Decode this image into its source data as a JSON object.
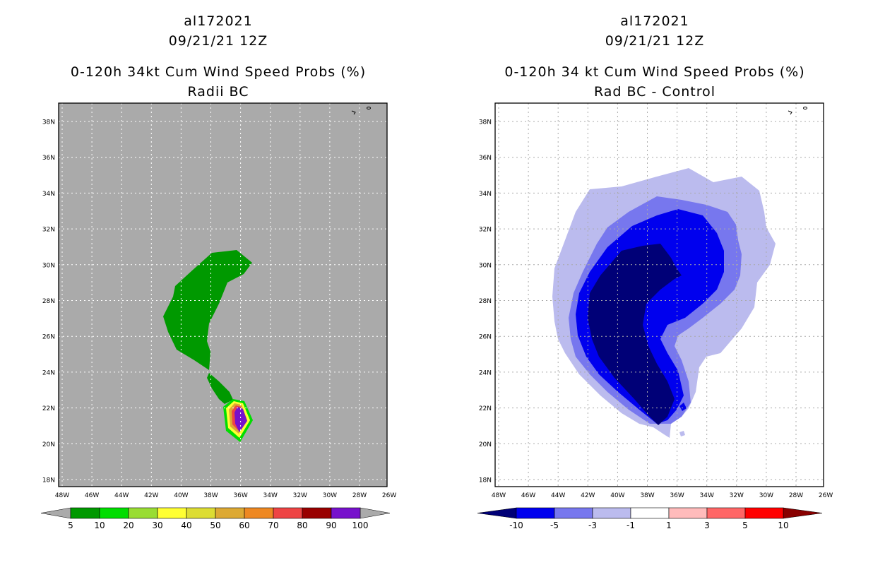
{
  "left": {
    "storm_id": "al172021",
    "datetime": "09/21/21 12Z",
    "title": "0-120h 34kt Cum Wind Speed Probs (%)",
    "subtitle": "Radii BC",
    "background_color": "#aaaaaa",
    "colorbar": {
      "colors": [
        "#009900",
        "#00dd00",
        "#99dd33",
        "#ffff33",
        "#dddd33",
        "#dda933",
        "#ee8822",
        "#ee4444",
        "#990000",
        "#7711cc"
      ],
      "labels": [
        "5",
        "10",
        "20",
        "30",
        "40",
        "50",
        "60",
        "70",
        "80",
        "90",
        "100"
      ]
    }
  },
  "right": {
    "storm_id": "al172021",
    "datetime": "09/21/21 12Z",
    "title": "0-120h 34 kt Cum Wind Speed Probs (%)",
    "subtitle": "Rad BC - Control",
    "background_color": "#ffffff",
    "colorbar": {
      "colors": [
        "#0000ee",
        "#7777ee",
        "#bbbbee",
        "#ffffff",
        "#ffbbbb",
        "#ff6666",
        "#ff0000"
      ],
      "left_arrow_color": "#000077",
      "right_arrow_color": "#880000",
      "labels": [
        "-10",
        "-5",
        "-3",
        "-1",
        "1",
        "3",
        "5",
        "10"
      ]
    }
  },
  "axes": {
    "lat_labels": [
      "38N",
      "36N",
      "34N",
      "32N",
      "30N",
      "28N",
      "26N",
      "24N",
      "22N",
      "20N",
      "18N"
    ],
    "lon_labels": [
      "48W",
      "46W",
      "44W",
      "42W",
      "40W",
      "38W",
      "36W",
      "34W",
      "32W",
      "30W",
      "28W",
      "26W"
    ]
  }
}
